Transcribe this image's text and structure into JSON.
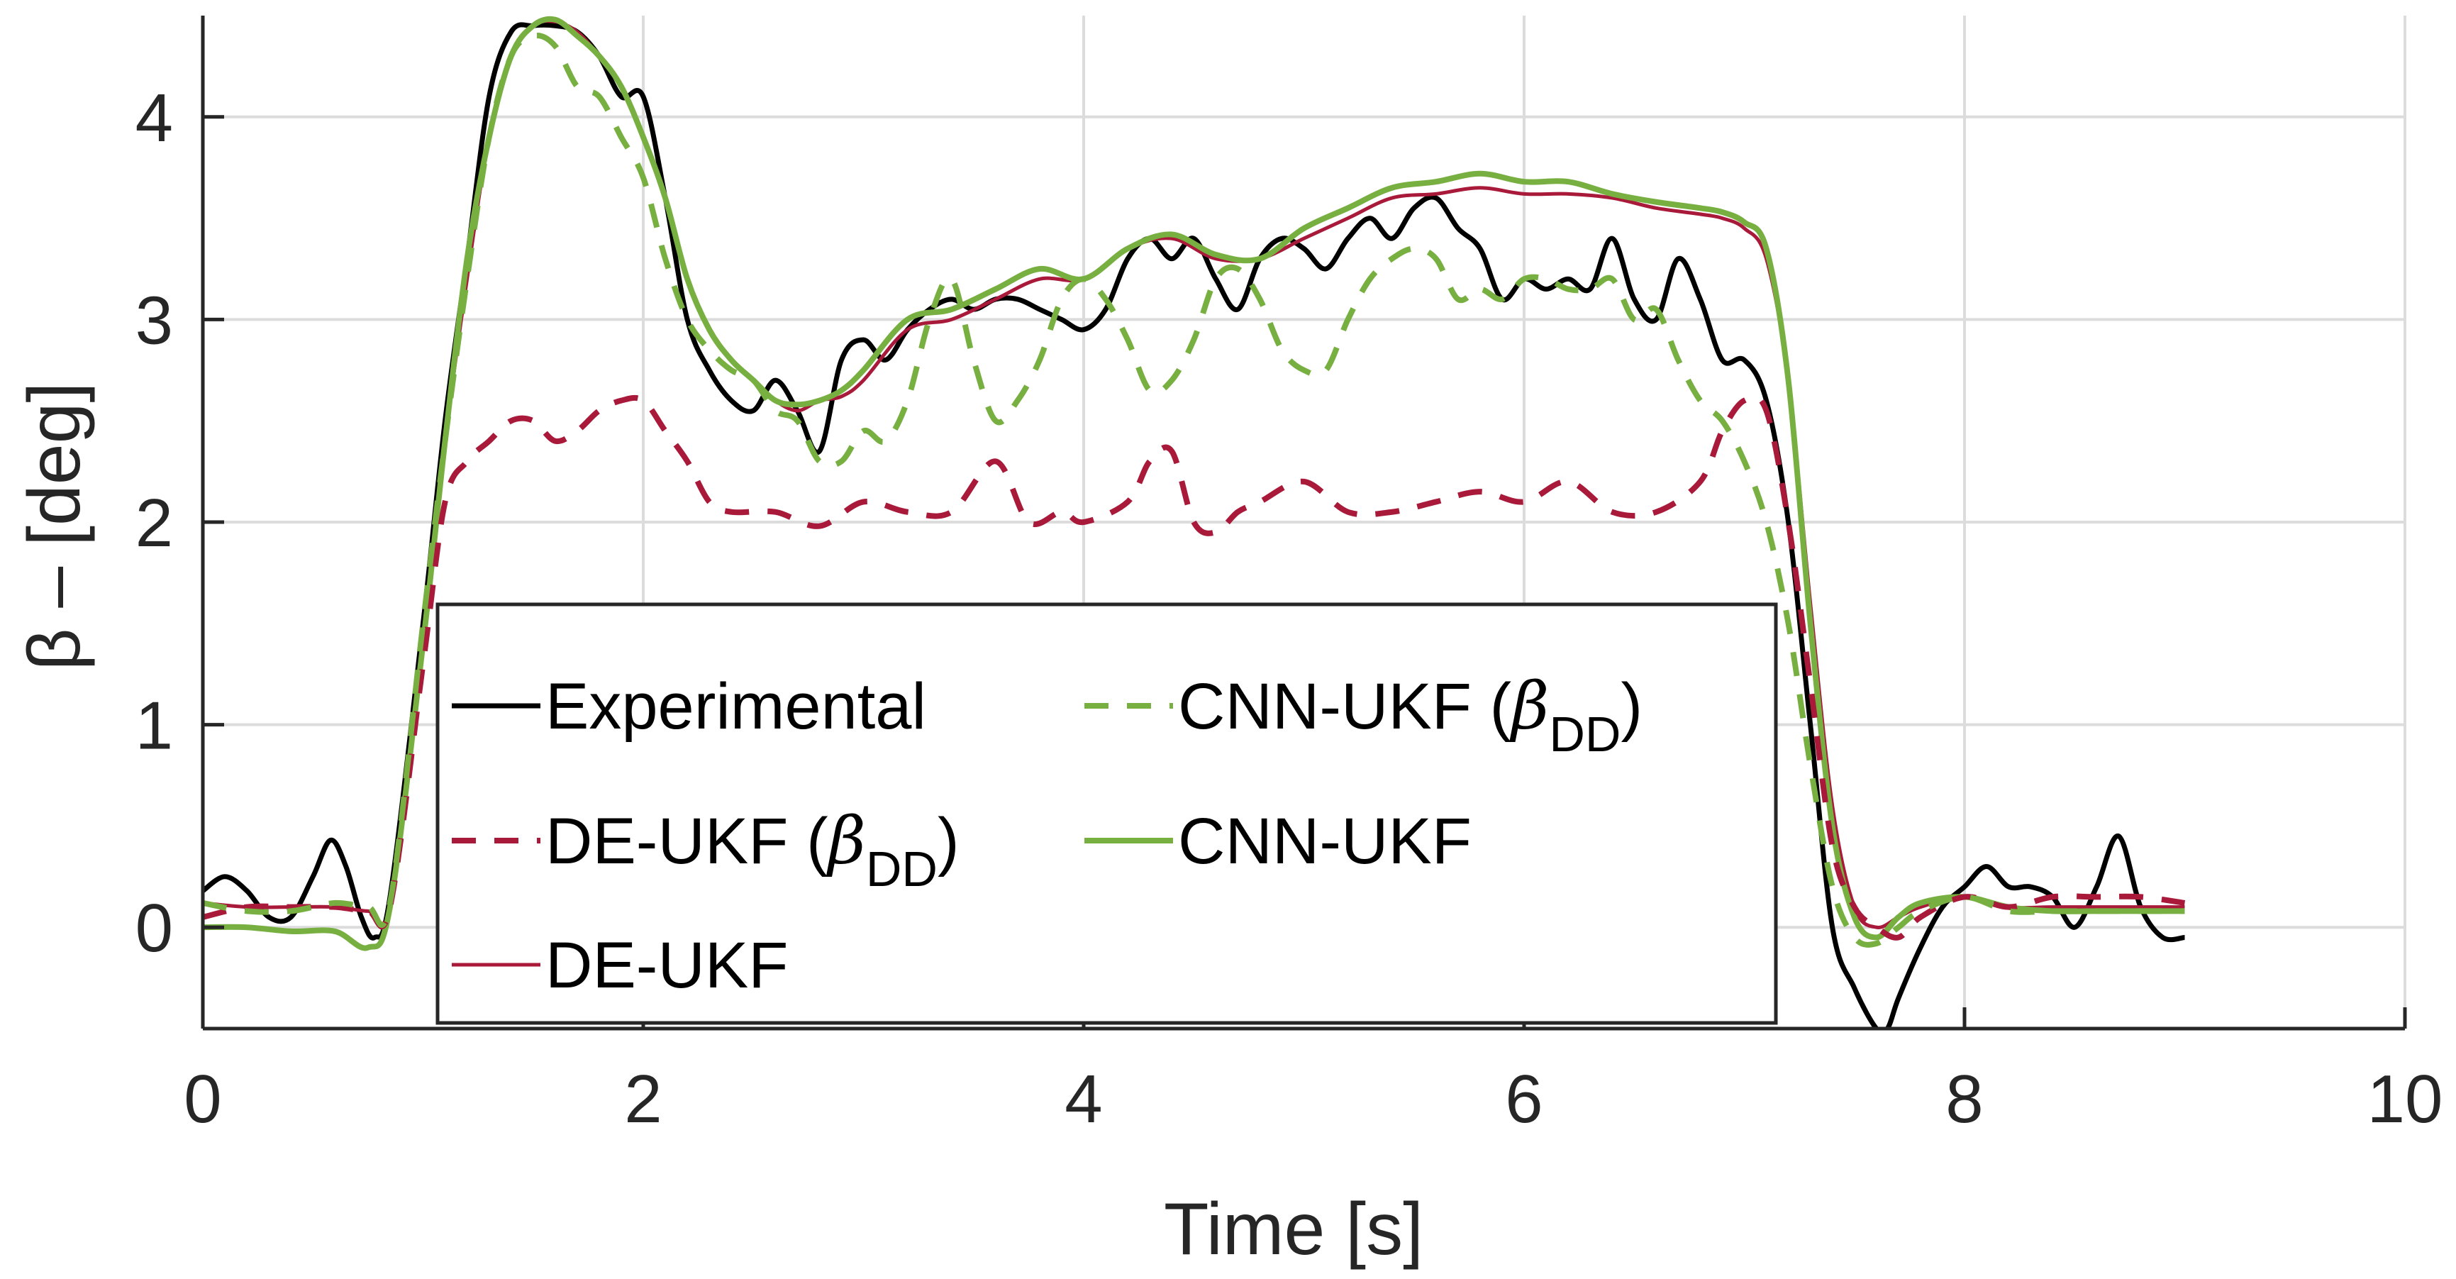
{
  "chart_data": {
    "type": "line",
    "xlabel": "Time [s]",
    "ylabel": "β – [deg]",
    "xlim": [
      0,
      10
    ],
    "ylim": [
      -0.5,
      4.5
    ],
    "xticks": [
      "0",
      "2",
      "4",
      "6",
      "8",
      "10"
    ],
    "yticks": [
      "0",
      "1",
      "2",
      "3",
      "4"
    ],
    "grid": true,
    "legend": {
      "position": "bottom-left",
      "columns": 2,
      "entries": [
        {
          "series": 0,
          "label": "Experimental"
        },
        {
          "series": 1,
          "label": "DE-UKF (",
          "symbol": "β",
          "subscript": "DD",
          "suffix": ")"
        },
        {
          "series": 2,
          "label": "DE-UKF"
        },
        {
          "series": 3,
          "label": "CNN-UKF (",
          "symbol": "β",
          "subscript": "DD",
          "suffix": ")"
        },
        {
          "series": 4,
          "label": "CNN-UKF"
        }
      ]
    },
    "series": [
      {
        "name": "Experimental",
        "color": "#000000",
        "style": "solid",
        "x": [
          0,
          0.1,
          0.2,
          0.3,
          0.4,
          0.5,
          0.58,
          0.65,
          0.72,
          0.78,
          0.85,
          1.0,
          1.1,
          1.2,
          1.3,
          1.4,
          1.5,
          1.6,
          1.7,
          1.8,
          1.9,
          2.0,
          2.1,
          2.2,
          2.3,
          2.4,
          2.5,
          2.6,
          2.7,
          2.8,
          2.9,
          3.0,
          3.1,
          3.2,
          3.3,
          3.4,
          3.5,
          3.6,
          3.7,
          3.8,
          3.9,
          4.0,
          4.1,
          4.2,
          4.3,
          4.4,
          4.5,
          4.6,
          4.7,
          4.8,
          4.9,
          5.0,
          5.1,
          5.2,
          5.3,
          5.4,
          5.5,
          5.6,
          5.7,
          5.8,
          5.9,
          6.0,
          6.1,
          6.2,
          6.3,
          6.4,
          6.5,
          6.6,
          6.7,
          6.8,
          6.9,
          7.0,
          7.1,
          7.2,
          7.3,
          7.4,
          7.5,
          7.6,
          7.65,
          7.7,
          7.8,
          7.9,
          8.0,
          8.1,
          8.2,
          8.3,
          8.4,
          8.5,
          8.6,
          8.7,
          8.8,
          8.9,
          9.0
        ],
        "values": [
          0.18,
          0.25,
          0.18,
          0.05,
          0.05,
          0.25,
          0.43,
          0.3,
          0.05,
          -0.05,
          0.15,
          1.5,
          2.5,
          3.3,
          4.1,
          4.42,
          4.45,
          4.45,
          4.42,
          4.3,
          4.1,
          4.1,
          3.6,
          3.0,
          2.75,
          2.6,
          2.55,
          2.7,
          2.55,
          2.35,
          2.8,
          2.9,
          2.8,
          2.95,
          3.05,
          3.1,
          3.05,
          3.1,
          3.1,
          3.05,
          3.0,
          2.95,
          3.05,
          3.3,
          3.4,
          3.3,
          3.4,
          3.2,
          3.05,
          3.3,
          3.4,
          3.35,
          3.25,
          3.4,
          3.5,
          3.4,
          3.55,
          3.6,
          3.45,
          3.35,
          3.1,
          3.2,
          3.15,
          3.2,
          3.15,
          3.4,
          3.1,
          3.0,
          3.3,
          3.1,
          2.8,
          2.8,
          2.6,
          2.0,
          1.0,
          0.0,
          -0.3,
          -0.5,
          -0.5,
          -0.35,
          -0.1,
          0.1,
          0.2,
          0.3,
          0.2,
          0.2,
          0.15,
          0.0,
          0.2,
          0.45,
          0.1,
          -0.05,
          -0.05
        ]
      },
      {
        "name": "DE-UKF (βDD)",
        "color": "#a8193a",
        "style": "dashed",
        "x": [
          0,
          0.2,
          0.4,
          0.6,
          0.75,
          0.85,
          1.0,
          1.1,
          1.2,
          1.3,
          1.4,
          1.5,
          1.6,
          1.7,
          1.8,
          1.9,
          2.0,
          2.1,
          2.2,
          2.3,
          2.4,
          2.6,
          2.8,
          3.0,
          3.2,
          3.4,
          3.6,
          3.75,
          3.9,
          4.0,
          4.2,
          4.3,
          4.4,
          4.5,
          4.6,
          4.7,
          4.8,
          5.0,
          5.2,
          5.4,
          5.6,
          5.8,
          6.0,
          6.2,
          6.4,
          6.6,
          6.8,
          6.9,
          7.0,
          7.1,
          7.2,
          7.3,
          7.4,
          7.5,
          7.6,
          7.7,
          7.8,
          8.0,
          8.2,
          8.4,
          8.6,
          8.8,
          9.0
        ],
        "values": [
          0.05,
          0.1,
          0.1,
          0.1,
          0.08,
          0.1,
          1.3,
          2.1,
          2.3,
          2.4,
          2.5,
          2.5,
          2.4,
          2.45,
          2.55,
          2.6,
          2.6,
          2.45,
          2.3,
          2.1,
          2.05,
          2.05,
          1.98,
          2.1,
          2.05,
          2.05,
          2.3,
          2.0,
          2.05,
          2.0,
          2.1,
          2.3,
          2.35,
          2.0,
          1.95,
          2.05,
          2.1,
          2.2,
          2.05,
          2.05,
          2.1,
          2.15,
          2.1,
          2.2,
          2.05,
          2.05,
          2.2,
          2.45,
          2.6,
          2.55,
          2.0,
          1.2,
          0.4,
          0.1,
          0.0,
          -0.05,
          0.05,
          0.15,
          0.1,
          0.15,
          0.15,
          0.15,
          0.12
        ]
      },
      {
        "name": "DE-UKF",
        "color": "#a8193a",
        "style": "solid",
        "x": [
          0,
          0.2,
          0.4,
          0.6,
          0.75,
          0.85,
          1.0,
          1.1,
          1.2,
          1.3,
          1.4,
          1.5,
          1.6,
          1.7,
          1.8,
          1.9,
          2.0,
          2.1,
          2.2,
          2.3,
          2.4,
          2.5,
          2.6,
          2.7,
          2.8,
          2.9,
          3.0,
          3.2,
          3.4,
          3.6,
          3.8,
          4.0,
          4.2,
          4.4,
          4.6,
          4.8,
          5.0,
          5.2,
          5.4,
          5.6,
          5.8,
          6.0,
          6.2,
          6.4,
          6.6,
          6.8,
          6.9,
          7.0,
          7.1,
          7.2,
          7.3,
          7.4,
          7.5,
          7.6,
          7.7,
          7.8,
          8.0,
          8.2,
          8.4,
          8.6,
          8.8,
          9.0
        ],
        "values": [
          0.12,
          0.1,
          0.1,
          0.1,
          0.08,
          0.1,
          1.4,
          2.4,
          3.2,
          3.9,
          4.3,
          4.45,
          4.47,
          4.42,
          4.3,
          4.15,
          3.9,
          3.6,
          3.2,
          2.95,
          2.8,
          2.7,
          2.6,
          2.55,
          2.6,
          2.62,
          2.7,
          2.95,
          3.0,
          3.1,
          3.2,
          3.2,
          3.35,
          3.4,
          3.3,
          3.3,
          3.4,
          3.5,
          3.6,
          3.62,
          3.65,
          3.62,
          3.62,
          3.6,
          3.55,
          3.52,
          3.5,
          3.45,
          3.3,
          2.7,
          1.6,
          0.6,
          0.1,
          0.0,
          0.05,
          0.1,
          0.15,
          0.1,
          0.1,
          0.1,
          0.1,
          0.1
        ]
      },
      {
        "name": "CNN-UKF (βDD)",
        "color": "#77b041",
        "style": "dashed",
        "x": [
          0,
          0.2,
          0.4,
          0.6,
          0.75,
          0.85,
          1.0,
          1.1,
          1.2,
          1.3,
          1.4,
          1.5,
          1.6,
          1.7,
          1.8,
          1.9,
          2.0,
          2.1,
          2.2,
          2.3,
          2.4,
          2.5,
          2.6,
          2.7,
          2.8,
          2.9,
          3.0,
          3.1,
          3.2,
          3.3,
          3.4,
          3.5,
          3.6,
          3.7,
          3.8,
          3.9,
          4.0,
          4.1,
          4.2,
          4.3,
          4.4,
          4.5,
          4.6,
          4.7,
          4.8,
          4.9,
          5.0,
          5.1,
          5.2,
          5.3,
          5.4,
          5.5,
          5.6,
          5.7,
          5.8,
          5.9,
          6.0,
          6.1,
          6.2,
          6.3,
          6.4,
          6.5,
          6.6,
          6.7,
          6.8,
          6.9,
          7.0,
          7.1,
          7.2,
          7.3,
          7.4,
          7.5,
          7.6,
          7.7,
          7.8,
          8.0,
          8.2,
          8.4,
          8.6,
          8.8,
          9.0
        ],
        "values": [
          0.12,
          0.08,
          0.08,
          0.12,
          0.1,
          0.12,
          1.5,
          2.4,
          3.2,
          3.9,
          4.3,
          4.4,
          4.35,
          4.15,
          4.1,
          3.9,
          3.7,
          3.3,
          3.0,
          2.85,
          2.75,
          2.7,
          2.55,
          2.5,
          2.3,
          2.3,
          2.45,
          2.4,
          2.6,
          3.0,
          3.2,
          2.8,
          2.5,
          2.6,
          2.8,
          3.1,
          3.2,
          3.1,
          2.9,
          2.65,
          2.7,
          2.9,
          3.2,
          3.25,
          3.1,
          2.85,
          2.75,
          2.75,
          3.0,
          3.2,
          3.3,
          3.35,
          3.3,
          3.1,
          3.15,
          3.1,
          3.2,
          3.2,
          3.15,
          3.15,
          3.2,
          3.0,
          3.05,
          2.8,
          2.6,
          2.5,
          2.3,
          2.0,
          1.5,
          0.8,
          0.2,
          -0.05,
          -0.08,
          0.0,
          0.08,
          0.15,
          0.08,
          0.08,
          0.08,
          0.08,
          0.08
        ]
      },
      {
        "name": "CNN-UKF",
        "color": "#77b041",
        "style": "solid",
        "x": [
          0,
          0.2,
          0.4,
          0.6,
          0.75,
          0.85,
          1.0,
          1.1,
          1.2,
          1.3,
          1.4,
          1.5,
          1.6,
          1.7,
          1.8,
          1.9,
          2.0,
          2.1,
          2.2,
          2.3,
          2.4,
          2.5,
          2.6,
          2.7,
          2.8,
          2.9,
          3.0,
          3.2,
          3.4,
          3.6,
          3.8,
          4.0,
          4.2,
          4.4,
          4.6,
          4.8,
          5.0,
          5.2,
          5.4,
          5.6,
          5.8,
          6.0,
          6.2,
          6.4,
          6.6,
          6.8,
          6.9,
          7.0,
          7.1,
          7.2,
          7.3,
          7.4,
          7.5,
          7.6,
          7.7,
          7.8,
          8.0,
          8.2,
          8.4,
          8.6,
          8.8,
          9.0
        ],
        "values": [
          0.0,
          0.0,
          -0.02,
          -0.02,
          -0.1,
          0.1,
          1.4,
          2.4,
          3.3,
          3.9,
          4.3,
          4.45,
          4.48,
          4.4,
          4.3,
          4.15,
          3.9,
          3.6,
          3.2,
          2.95,
          2.8,
          2.7,
          2.6,
          2.58,
          2.6,
          2.65,
          2.75,
          3.0,
          3.05,
          3.15,
          3.25,
          3.2,
          3.35,
          3.42,
          3.32,
          3.3,
          3.45,
          3.55,
          3.65,
          3.68,
          3.72,
          3.68,
          3.68,
          3.62,
          3.58,
          3.55,
          3.53,
          3.48,
          3.35,
          2.7,
          1.5,
          0.5,
          0.05,
          -0.05,
          0.05,
          0.12,
          0.15,
          0.1,
          0.08,
          0.08,
          0.08,
          0.08
        ]
      }
    ]
  }
}
